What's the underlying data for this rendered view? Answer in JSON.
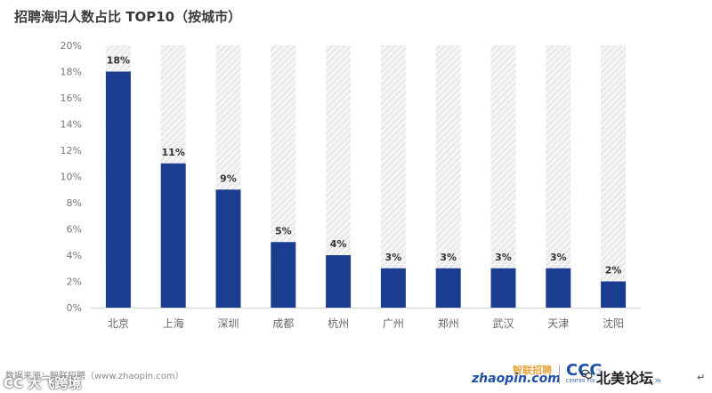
{
  "chart_data": {
    "type": "bar",
    "title": "招聘海归人数占比 TOP10（按城市）",
    "categories": [
      "北京",
      "上海",
      "深圳",
      "成都",
      "杭州",
      "广州",
      "郑州",
      "武汉",
      "天津",
      "沈阳"
    ],
    "values": [
      18,
      11,
      9,
      5,
      4,
      3,
      3,
      3,
      3,
      2
    ],
    "data_labels": [
      "18%",
      "11%",
      "9%",
      "5%",
      "4%",
      "3%",
      "3%",
      "3%",
      "3%",
      "2%"
    ],
    "y_ticks": [
      "0%",
      "2%",
      "4%",
      "6%",
      "8%",
      "10%",
      "12%",
      "14%",
      "16%",
      "18%",
      "20%"
    ],
    "ylim": [
      0,
      20
    ],
    "xlabel": "",
    "ylabel": "",
    "grid": false,
    "bar_color": "#1a3d8f",
    "background_bar": "hatched-gray"
  },
  "footer": {
    "source": "数据来源：智联招聘（www.zhaopin.com）",
    "watermark_left": "CC 大飞跨境",
    "watermark_right": "北美论坛",
    "logo_zhaopin_cn": "智联招聘",
    "logo_zhaopin_en": "zhaopin.com",
    "logo_ccg_mark": "CCG",
    "logo_ccg_sub": "CENTER FOR CHINA & GLOBALIZATION",
    "corner_symbol": "↵"
  },
  "icons": {
    "wechat": "wechat-icon"
  }
}
